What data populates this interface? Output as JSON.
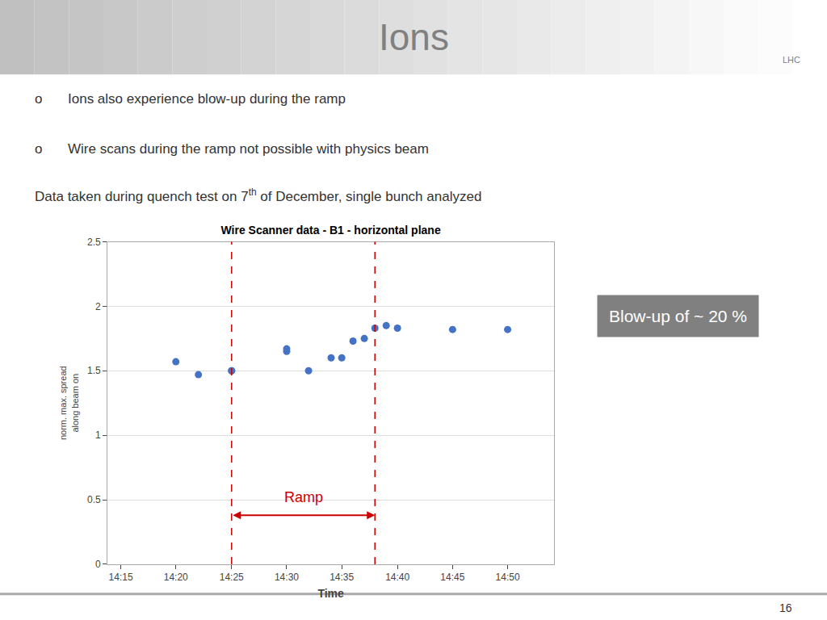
{
  "chart_data": {
    "type": "scatter",
    "title": "Wire Scanner data - B1 - horizontal plane",
    "x_label": "Time",
    "y_label": "norm. max. spread\nalong beam on",
    "x": [
      14.333,
      14.367,
      14.417,
      14.417,
      14.5,
      14.5,
      14.533,
      14.567,
      14.583,
      14.6,
      14.617,
      14.633,
      14.65,
      14.667,
      14.75,
      14.833
    ],
    "values": [
      1.57,
      1.47,
      1.5,
      1.5,
      1.65,
      1.67,
      1.5,
      1.6,
      1.6,
      1.73,
      1.75,
      1.83,
      1.85,
      1.83,
      1.82,
      1.82
    ],
    "color": "#4472C4",
    "marker": "circle",
    "xlim": [
      14.23,
      14.903
    ],
    "xticks": [
      {
        "value": 14.25,
        "label": "14:15"
      },
      {
        "value": 14.333,
        "label": "14:20"
      },
      {
        "value": 14.417,
        "label": "14:25"
      },
      {
        "value": 14.5,
        "label": "14:30"
      },
      {
        "value": 14.583,
        "label": "14:35"
      },
      {
        "value": 14.667,
        "label": "14:40"
      },
      {
        "value": 14.75,
        "label": "14:45"
      },
      {
        "value": 14.833,
        "label": "14:50"
      }
    ],
    "ylim": [
      0,
      2.5
    ],
    "yticks": [
      0,
      0.5,
      1,
      1.5,
      2,
      2.5
    ],
    "grid": "y",
    "annotations": [
      {
        "text": "Ions"
      },
      {
        "text": "LHC"
      },
      {
        "text": "Ions also experience blow-up during the ramp",
        "marker": "o"
      },
      {
        "text": "Wire scans during the ramp not possible with physics beam",
        "marker": "o"
      },
      {
        "text": "Data taken during quench test on 7",
        "superscript": "th",
        "text_after": " of December, single bunch analyzed"
      },
      {
        "text": "Ramp",
        "x_start": 14.417,
        "x_end": 14.633,
        "color": "#CC0000",
        "line_style": "dashed"
      },
      {
        "text": "Blow-up of ~ 20 %"
      },
      {
        "text": "16"
      }
    ]
  }
}
